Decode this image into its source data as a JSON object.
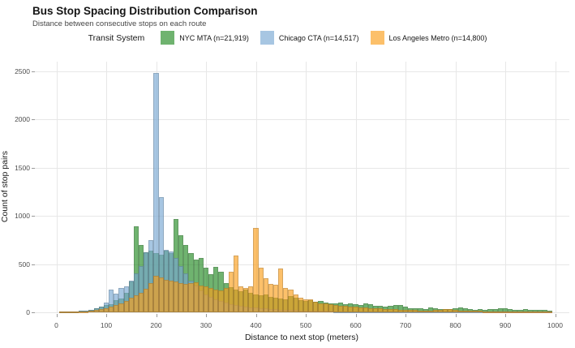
{
  "header": {
    "title": "Bus Stop Spacing Distribution Comparison",
    "subtitle": "Distance between consecutive stops on each route"
  },
  "legend": {
    "title": "Transit System",
    "items": [
      {
        "label": "NYC MTA (n=21,919)",
        "color": "rgba(34,139,34,0.65)"
      },
      {
        "label": "Chicago CTA (n=14,517)",
        "color": "rgba(120,168,210,0.65)"
      },
      {
        "label": "Los Angeles Metro (n=14,800)",
        "color": "rgba(250,158,26,0.65)"
      }
    ]
  },
  "chart_data": {
    "type": "histogram",
    "title": "Bus Stop Spacing Distribution Comparison",
    "subtitle": "Distance between consecutive stops on each route",
    "xlabel": "Distance to next stop (meters)",
    "ylabel": "Count of stop pairs",
    "xlim": [
      0,
      1000
    ],
    "ylim": [
      0,
      2500
    ],
    "x_ticks": [
      0,
      100,
      200,
      300,
      400,
      500,
      600,
      700,
      800,
      900,
      1000
    ],
    "y_ticks": [
      0,
      500,
      1000,
      1500,
      2000,
      2500
    ],
    "grid": true,
    "legend_position": "top",
    "bin_width": 10,
    "bin_centers": [
      10,
      20,
      30,
      40,
      50,
      60,
      70,
      80,
      90,
      100,
      110,
      120,
      130,
      140,
      150,
      160,
      170,
      180,
      190,
      200,
      210,
      220,
      230,
      240,
      250,
      260,
      270,
      280,
      290,
      300,
      310,
      320,
      330,
      340,
      350,
      360,
      370,
      380,
      390,
      400,
      410,
      420,
      430,
      440,
      450,
      460,
      470,
      480,
      490,
      500,
      510,
      520,
      530,
      540,
      550,
      560,
      570,
      580,
      590,
      600,
      610,
      620,
      630,
      640,
      650,
      660,
      670,
      680,
      690,
      700,
      710,
      720,
      730,
      740,
      750,
      760,
      770,
      780,
      790,
      800,
      810,
      820,
      830,
      840,
      850,
      860,
      870,
      880,
      890,
      900,
      910,
      920,
      930,
      940,
      950,
      960,
      970,
      980,
      990
    ],
    "series": [
      {
        "name": "NYC MTA (n=21,919)",
        "color": "rgba(34,139,34,0.65)",
        "values": [
          4,
          6,
          8,
          10,
          13,
          18,
          25,
          38,
          60,
          72,
          80,
          128,
          145,
          200,
          320,
          890,
          700,
          620,
          640,
          610,
          600,
          640,
          615,
          965,
          800,
          700,
          612,
          548,
          560,
          458,
          398,
          470,
          420,
          302,
          258,
          232,
          215,
          238,
          205,
          188,
          175,
          185,
          162,
          150,
          140,
          134,
          165,
          152,
          128,
          120,
          126,
          110,
          116,
          104,
          95,
          96,
          100,
          86,
          95,
          88,
          75,
          95,
          80,
          70,
          64,
          58,
          64,
          74,
          72,
          60,
          46,
          40,
          38,
          35,
          52,
          40,
          34,
          32,
          30,
          45,
          47,
          40,
          32,
          28,
          30,
          26,
          30,
          34,
          42,
          45,
          34,
          28,
          25,
          30,
          28,
          24,
          28,
          24,
          20
        ]
      },
      {
        "name": "Chicago CTA (n=14,517)",
        "color": "rgba(120,168,210,0.65)",
        "values": [
          2,
          3,
          5,
          8,
          15,
          20,
          28,
          42,
          55,
          105,
          235,
          190,
          255,
          272,
          330,
          400,
          480,
          625,
          745,
          2480,
          1195,
          650,
          628,
          560,
          478,
          400,
          330,
          278,
          228,
          188,
          158,
          138,
          118,
          100,
          88,
          78,
          68,
          60,
          54,
          48,
          44,
          40,
          35,
          32,
          29,
          26,
          24,
          22,
          20,
          18,
          17,
          16,
          15,
          14,
          13,
          12,
          11,
          11,
          10,
          10,
          9,
          9,
          8,
          8,
          7,
          7,
          6,
          6,
          6,
          5,
          5,
          5,
          4,
          4,
          4,
          4,
          3,
          3,
          3,
          3,
          3,
          3,
          2,
          2,
          2,
          2,
          2,
          2,
          2,
          2,
          2,
          2,
          1,
          1,
          1,
          1,
          1,
          1,
          1
        ]
      },
      {
        "name": "Los Angeles Metro (n=14,800)",
        "color": "rgba(250,158,26,0.65)",
        "values": [
          1,
          2,
          3,
          5,
          8,
          12,
          18,
          25,
          34,
          45,
          58,
          72,
          95,
          120,
          148,
          175,
          205,
          240,
          300,
          375,
          360,
          340,
          330,
          318,
          305,
          298,
          300,
          310,
          280,
          268,
          255,
          232,
          225,
          248,
          420,
          590,
          268,
          255,
          272,
          870,
          460,
          350,
          298,
          288,
          455,
          250,
          235,
          182,
          152,
          138,
          132,
          106,
          96,
          90,
          85,
          78,
          70,
          66,
          62,
          58,
          54,
          50,
          46,
          43,
          40,
          37,
          34,
          31,
          28,
          26,
          24,
          22,
          21,
          20,
          19,
          22,
          28,
          34,
          30,
          22,
          18,
          16,
          15,
          14,
          13,
          12,
          11,
          10,
          10,
          9,
          9,
          8,
          8,
          7,
          7,
          6,
          6,
          5,
          5
        ]
      }
    ]
  }
}
